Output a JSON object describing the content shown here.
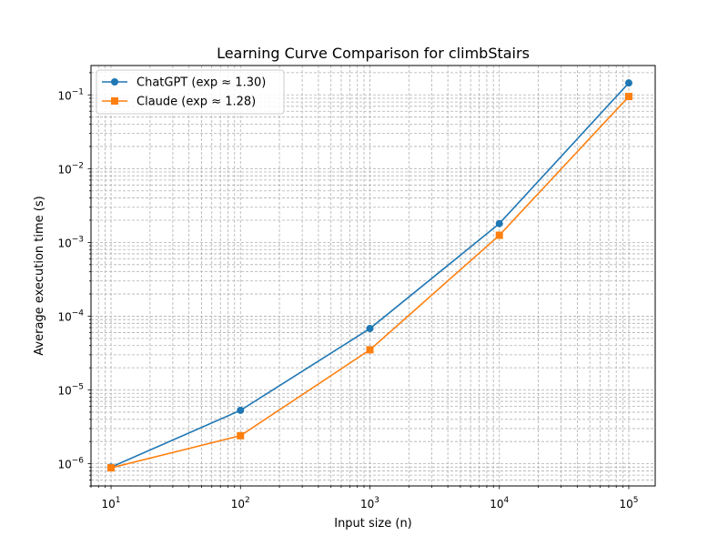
{
  "chart_data": {
    "type": "line",
    "title": "Learning Curve Comparison for climbStairs",
    "xlabel": "Input size (n)",
    "ylabel": "Average execution time (s)",
    "xscale": "log",
    "yscale": "log",
    "xlim": [
      7,
      160000
    ],
    "ylim": [
      5e-07,
      0.25
    ],
    "x": [
      10,
      100,
      1000,
      10000,
      100000
    ],
    "x_ticks": [
      {
        "value": 10,
        "base": "10",
        "exp": "1"
      },
      {
        "value": 100,
        "base": "10",
        "exp": "2"
      },
      {
        "value": 1000,
        "base": "10",
        "exp": "3"
      },
      {
        "value": 10000,
        "base": "10",
        "exp": "4"
      },
      {
        "value": 100000,
        "base": "10",
        "exp": "5"
      }
    ],
    "y_ticks": [
      {
        "value": 1e-06,
        "base": "10",
        "exp": "−6"
      },
      {
        "value": 1e-05,
        "base": "10",
        "exp": "−5"
      },
      {
        "value": 0.0001,
        "base": "10",
        "exp": "−4"
      },
      {
        "value": 0.001,
        "base": "10",
        "exp": "−3"
      },
      {
        "value": 0.01,
        "base": "10",
        "exp": "−2"
      },
      {
        "value": 0.1,
        "base": "10",
        "exp": "−1"
      }
    ],
    "grid": "both, major and minor, dashed",
    "legend_position": "upper-left",
    "series": [
      {
        "name": "ChatGPT (exp ≈ 1.30)",
        "color": "#1f77b4",
        "marker": "circle",
        "values": [
          9e-07,
          5.3e-06,
          6.8e-05,
          0.0018,
          0.145
        ]
      },
      {
        "name": "Claude (exp ≈ 1.28)",
        "color": "#ff7f0e",
        "marker": "square",
        "values": [
          8.8e-07,
          2.4e-06,
          3.5e-05,
          0.00125,
          0.095
        ]
      }
    ]
  }
}
